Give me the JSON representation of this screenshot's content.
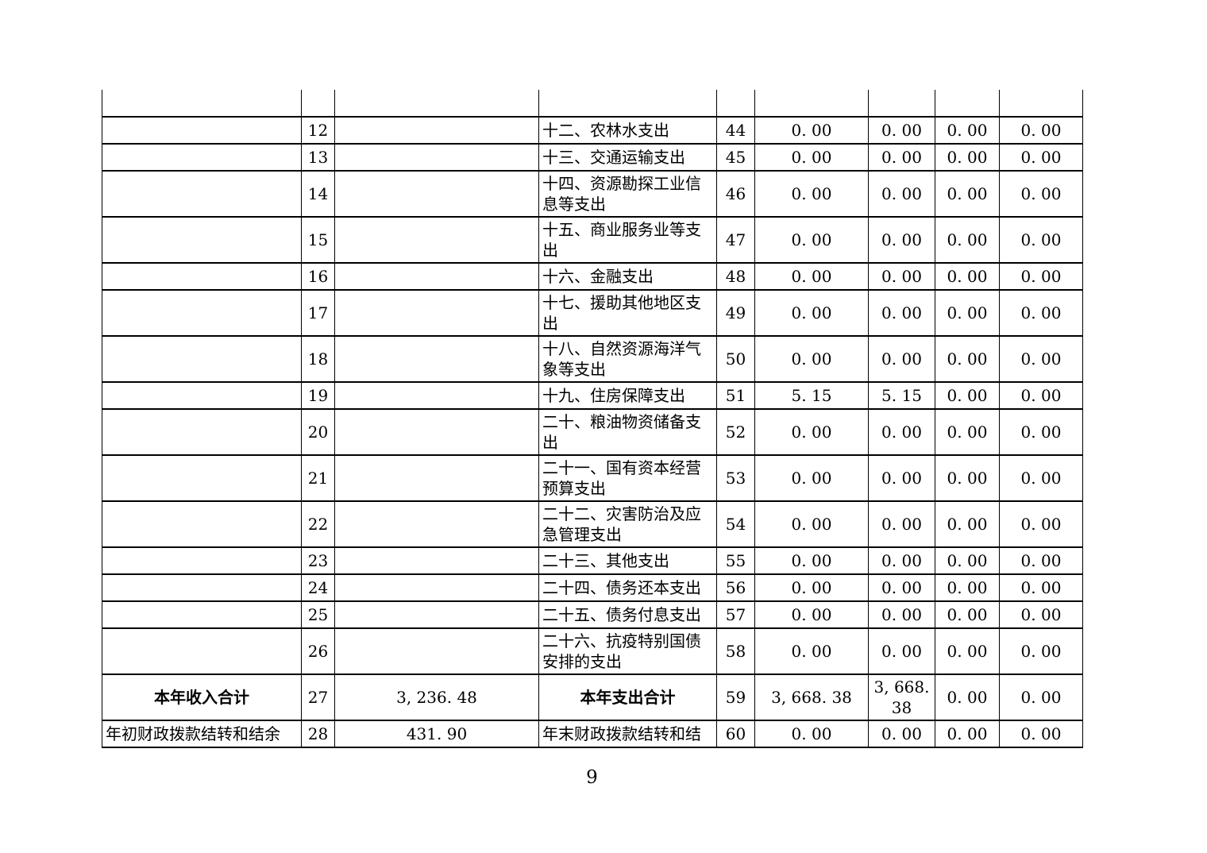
{
  "page": {
    "number": "9"
  },
  "colors": {
    "background": "#ffffff",
    "text": "#000000",
    "border": "#000000"
  },
  "table": {
    "rows": [
      {
        "left_label": "",
        "left_no": "12",
        "left_amount": "",
        "right_label": "十二、农林水支出",
        "right_no": "44",
        "amounts": [
          "0. 00",
          "0. 00",
          "0. 00",
          "0. 00"
        ],
        "total": false
      },
      {
        "left_label": "",
        "left_no": "13",
        "left_amount": "",
        "right_label": "十三、交通运输支出",
        "right_no": "45",
        "amounts": [
          "0. 00",
          "0. 00",
          "0. 00",
          "0. 00"
        ],
        "total": false
      },
      {
        "left_label": "",
        "left_no": "14",
        "left_amount": "",
        "right_label": "十四、资源勘探工业信息等支出",
        "right_no": "46",
        "amounts": [
          "0. 00",
          "0. 00",
          "0. 00",
          "0. 00"
        ],
        "total": false
      },
      {
        "left_label": "",
        "left_no": "15",
        "left_amount": "",
        "right_label": "十五、商业服务业等支出",
        "right_no": "47",
        "amounts": [
          "0. 00",
          "0. 00",
          "0. 00",
          "0. 00"
        ],
        "total": false
      },
      {
        "left_label": "",
        "left_no": "16",
        "left_amount": "",
        "right_label": "十六、金融支出",
        "right_no": "48",
        "amounts": [
          "0. 00",
          "0. 00",
          "0. 00",
          "0. 00"
        ],
        "total": false
      },
      {
        "left_label": "",
        "left_no": "17",
        "left_amount": "",
        "right_label": "十七、援助其他地区支出",
        "right_no": "49",
        "amounts": [
          "0. 00",
          "0. 00",
          "0. 00",
          "0. 00"
        ],
        "total": false
      },
      {
        "left_label": "",
        "left_no": "18",
        "left_amount": "",
        "right_label": "十八、自然资源海洋气象等支出",
        "right_no": "50",
        "amounts": [
          "0. 00",
          "0. 00",
          "0. 00",
          "0. 00"
        ],
        "total": false
      },
      {
        "left_label": "",
        "left_no": "19",
        "left_amount": "",
        "right_label": "十九、住房保障支出",
        "right_no": "51",
        "amounts": [
          "5. 15",
          "5. 15",
          "0. 00",
          "0. 00"
        ],
        "total": false
      },
      {
        "left_label": "",
        "left_no": "20",
        "left_amount": "",
        "right_label": "二十、粮油物资储备支出",
        "right_no": "52",
        "amounts": [
          "0. 00",
          "0. 00",
          "0. 00",
          "0. 00"
        ],
        "total": false
      },
      {
        "left_label": "",
        "left_no": "21",
        "left_amount": "",
        "right_label": "二十一、国有资本经营预算支出",
        "right_no": "53",
        "amounts": [
          "0. 00",
          "0. 00",
          "0. 00",
          "0. 00"
        ],
        "total": false
      },
      {
        "left_label": "",
        "left_no": "22",
        "left_amount": "",
        "right_label": "二十二、灾害防治及应急管理支出",
        "right_no": "54",
        "amounts": [
          "0. 00",
          "0. 00",
          "0. 00",
          "0. 00"
        ],
        "total": false
      },
      {
        "left_label": "",
        "left_no": "23",
        "left_amount": "",
        "right_label": "二十三、其他支出",
        "right_no": "55",
        "amounts": [
          "0. 00",
          "0. 00",
          "0. 00",
          "0. 00"
        ],
        "total": false
      },
      {
        "left_label": "",
        "left_no": "24",
        "left_amount": "",
        "right_label": "二十四、债务还本支出",
        "right_no": "56",
        "amounts": [
          "0. 00",
          "0. 00",
          "0. 00",
          "0. 00"
        ],
        "total": false
      },
      {
        "left_label": "",
        "left_no": "25",
        "left_amount": "",
        "right_label": "二十五、债务付息支出",
        "right_no": "57",
        "amounts": [
          "0. 00",
          "0. 00",
          "0. 00",
          "0. 00"
        ],
        "total": false
      },
      {
        "left_label": "",
        "left_no": "26",
        "left_amount": "",
        "right_label": "二十六、抗疫特别国债安排的支出",
        "right_no": "58",
        "amounts": [
          "0. 00",
          "0. 00",
          "0. 00",
          "0. 00"
        ],
        "total": false
      },
      {
        "left_label": "本年收入合计",
        "left_no": "27",
        "left_amount": "3, 236. 48",
        "right_label": "本年支出合计",
        "right_no": "59",
        "amounts": [
          "3, 668. 38",
          "3, 668. 38",
          "0. 00",
          "0. 00"
        ],
        "total": true
      },
      {
        "left_label": "年初财政拨款结转和结余",
        "left_no": "28",
        "left_amount": "431. 90",
        "right_label": "年末财政拨款结转和结",
        "right_no": "60",
        "amounts": [
          "0. 00",
          "0. 00",
          "0. 00",
          "0. 00"
        ],
        "total": false
      }
    ]
  }
}
